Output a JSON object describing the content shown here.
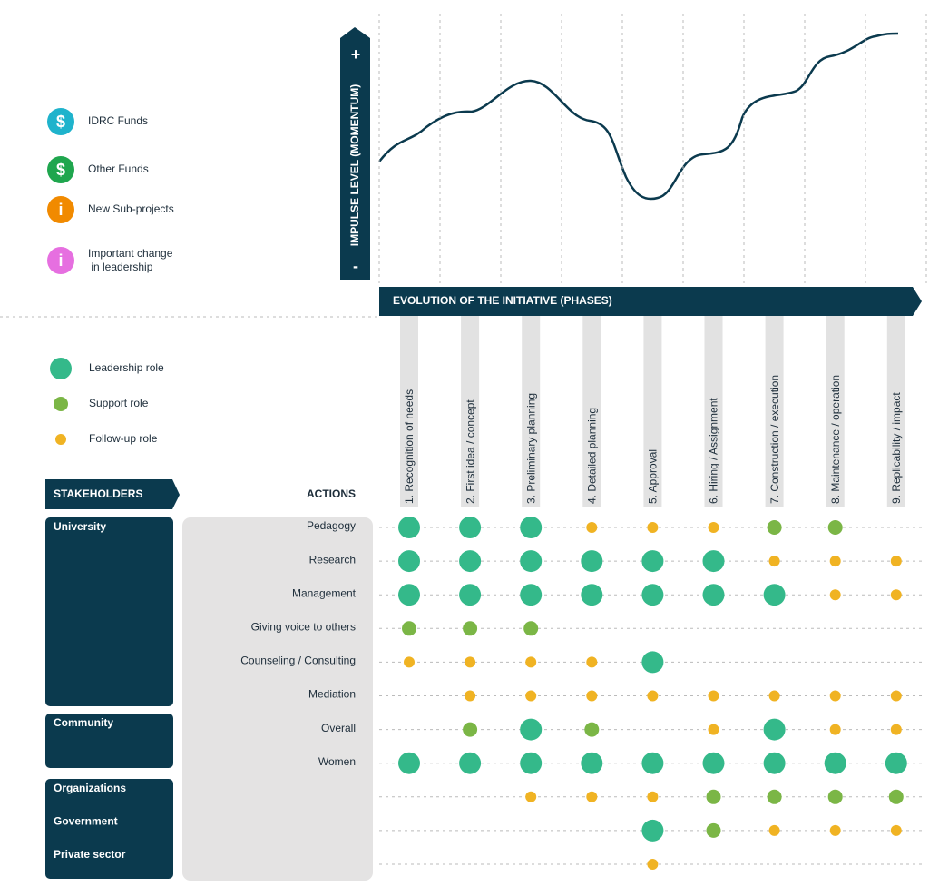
{
  "funds_legend": [
    {
      "icon": "$",
      "label": "IDRC Funds",
      "color": "#1fb3cc"
    },
    {
      "icon": "$",
      "label": "Other Funds",
      "color": "#1fa64e"
    },
    {
      "icon": "i",
      "label": "New Sub-projects",
      "color": "#f18a00"
    },
    {
      "icon": "i",
      "label": "Important change in leadership",
      "color": "#e66fe0"
    }
  ],
  "momentum_axis": {
    "title": "IMPULSE LEVEL (MOMENTUM)",
    "plus": "+",
    "minus": "-"
  },
  "phases_title": "EVOLUTION OF THE INITIATIVE (PHASES)",
  "phases": [
    "1. Recognition of needs",
    "2. First idea / concept",
    "3. Preliminary planning",
    "4. Detailed planning",
    "5. Approval",
    "6. Hiring / Assignment",
    "7. Construction / execution",
    "8. Maintenance / operation",
    "9. Replicability / impact"
  ],
  "roles": [
    {
      "label": "Leadership role",
      "color": "#34b98a"
    },
    {
      "label": "Support role",
      "color": "#7bb646"
    },
    {
      "label": "Follow-up role",
      "color": "#f0b323"
    }
  ],
  "stakeholders_header": "STAKEHOLDERS",
  "actions_header": "ACTIONS",
  "stakeholder_groups": [
    [
      "University"
    ],
    [
      "Community"
    ],
    [
      "Organizations",
      "Government",
      "Private sector"
    ]
  ],
  "rows": [
    {
      "action": "Pedagogy",
      "roles": [
        0,
        0,
        0,
        2,
        2,
        2,
        1,
        1,
        null
      ]
    },
    {
      "action": "Research",
      "roles": [
        0,
        0,
        0,
        0,
        0,
        0,
        2,
        2,
        2
      ]
    },
    {
      "action": "Management",
      "roles": [
        0,
        0,
        0,
        0,
        0,
        0,
        0,
        2,
        2
      ]
    },
    {
      "action": "Giving voice to others",
      "roles": [
        1,
        1,
        1,
        null,
        null,
        null,
        null,
        null,
        null
      ]
    },
    {
      "action": "Counseling / Consulting",
      "roles": [
        2,
        2,
        2,
        2,
        0,
        null,
        null,
        null,
        null
      ]
    },
    {
      "action": "Mediation",
      "roles": [
        null,
        2,
        2,
        2,
        2,
        2,
        2,
        2,
        2
      ]
    },
    {
      "action": "Overall",
      "roles": [
        null,
        1,
        0,
        1,
        null,
        2,
        0,
        2,
        2
      ]
    },
    {
      "action": "Women",
      "roles": [
        0,
        0,
        0,
        0,
        0,
        0,
        0,
        0,
        0
      ]
    },
    {
      "roles": [
        null,
        null,
        2,
        2,
        2,
        1,
        1,
        1,
        1
      ]
    },
    {
      "roles": [
        null,
        null,
        null,
        null,
        0,
        1,
        2,
        2,
        2
      ]
    },
    {
      "roles": [
        null,
        null,
        null,
        null,
        2,
        null,
        null,
        null,
        null
      ]
    }
  ]
}
